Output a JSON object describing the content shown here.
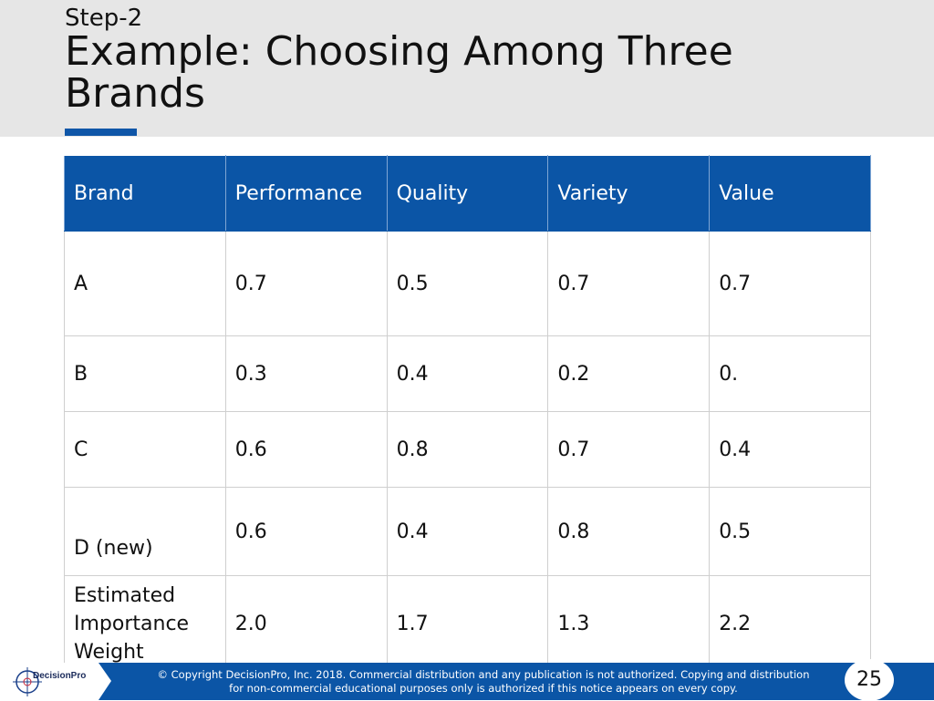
{
  "slide": {
    "step_label": "Step-2",
    "title": "Example: Choosing Among Three Brands"
  },
  "table": {
    "headers": [
      "Brand",
      "Performance",
      "Quality",
      "Variety",
      "Value"
    ],
    "rows": [
      [
        "A",
        "0.7",
        "0.5",
        "0.7",
        "0.7"
      ],
      [
        "B",
        "0.3",
        "0.4",
        "0.2",
        "0."
      ],
      [
        "C",
        "0.6",
        "0.8",
        "0.7",
        "0.4"
      ],
      [
        "D (new)",
        "0.6",
        "0.4",
        "0.8",
        "0.5"
      ],
      [
        "Estimated Importance Weight",
        "2.0",
        "1.7",
        "1.3",
        "2.2"
      ]
    ]
  },
  "footer": {
    "logo_text": "DecisionPro",
    "copyright_line1": "© Copyright DecisionPro, Inc.  2018. Commercial distribution and any publication is not authorized. Copying and distribution",
    "copyright_line2": "for non-commercial educational purposes only is authorized if this notice appears on every copy.",
    "page_number": "25"
  },
  "colors": {
    "header_band": "#e6e6e6",
    "accent_blue": "#0b55a6",
    "footer_blue": "#0b55a6"
  }
}
